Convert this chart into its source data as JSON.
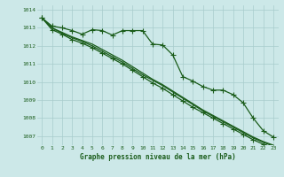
{
  "x": [
    0,
    1,
    2,
    3,
    4,
    5,
    6,
    7,
    8,
    9,
    10,
    11,
    12,
    13,
    14,
    15,
    16,
    17,
    18,
    19,
    20,
    21,
    22,
    23
  ],
  "line1": [
    1013.55,
    1013.1,
    1013.0,
    1012.85,
    1012.65,
    1012.9,
    1012.85,
    1012.6,
    1012.85,
    1012.85,
    1012.85,
    1012.1,
    1012.05,
    1011.5,
    1010.3,
    1010.05,
    1009.75,
    1009.55,
    1009.55,
    1009.3,
    1008.85,
    1008.0,
    1007.3,
    1006.95
  ],
  "line2": [
    1013.55,
    1013.0,
    1012.75,
    1012.5,
    1012.3,
    1012.1,
    1011.8,
    1011.5,
    1011.2,
    1010.85,
    1010.5,
    1010.15,
    1009.85,
    1009.5,
    1009.15,
    1008.8,
    1008.45,
    1008.15,
    1007.85,
    1007.55,
    1007.25,
    1006.95,
    1006.7,
    1006.5
  ],
  "line3": [
    1013.55,
    1013.0,
    1012.7,
    1012.45,
    1012.25,
    1012.0,
    1011.7,
    1011.4,
    1011.1,
    1010.75,
    1010.4,
    1010.1,
    1009.8,
    1009.45,
    1009.1,
    1008.75,
    1008.4,
    1008.1,
    1007.8,
    1007.5,
    1007.2,
    1006.9,
    1006.65,
    1006.45
  ],
  "line4": [
    1013.55,
    1012.9,
    1012.65,
    1012.35,
    1012.15,
    1011.9,
    1011.6,
    1011.3,
    1011.0,
    1010.65,
    1010.3,
    1009.95,
    1009.65,
    1009.3,
    1008.95,
    1008.6,
    1008.3,
    1008.0,
    1007.7,
    1007.4,
    1007.1,
    1006.8,
    1006.55,
    1006.35
  ],
  "ylim": [
    1006.5,
    1014.25
  ],
  "yticks": [
    1007,
    1008,
    1009,
    1010,
    1011,
    1012,
    1013,
    1014
  ],
  "xticks": [
    0,
    1,
    2,
    3,
    4,
    5,
    6,
    7,
    8,
    9,
    10,
    11,
    12,
    13,
    14,
    15,
    16,
    17,
    18,
    19,
    20,
    21,
    22,
    23
  ],
  "xlabel": "Graphe pression niveau de la mer (hPa)",
  "line_color": "#1a5c1a",
  "bg_color": "#cce8e8",
  "grid_color": "#a8cccc",
  "text_color": "#1a5c1a",
  "marker": "+",
  "linewidth": 0.9,
  "marker_size": 4
}
